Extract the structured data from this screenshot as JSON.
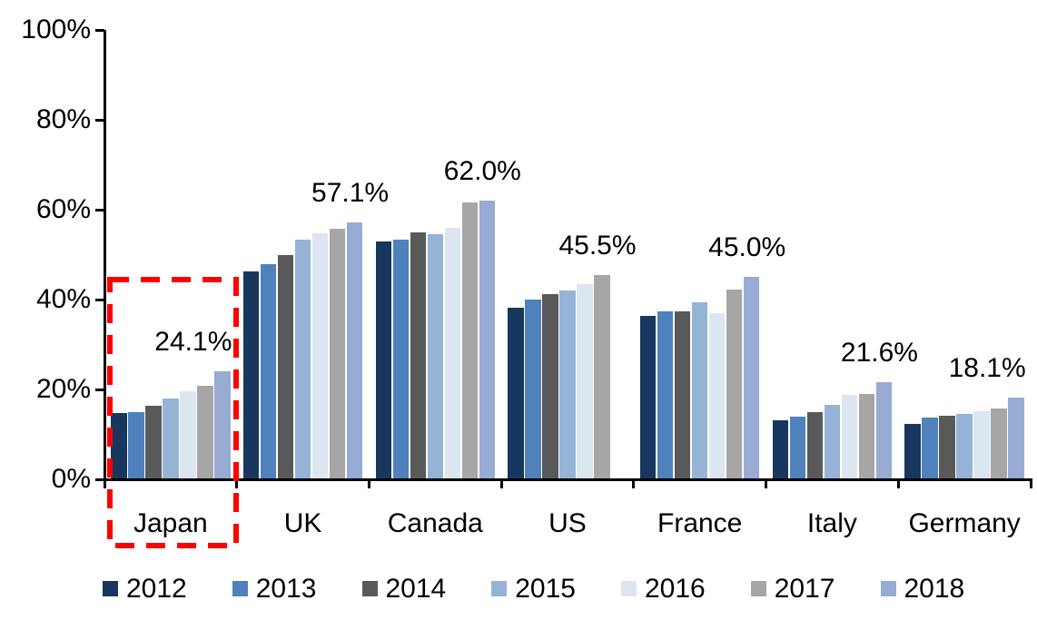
{
  "chart_data": {
    "type": "bar",
    "title": "",
    "xlabel": "",
    "ylabel": "",
    "categories": [
      "Japan",
      "UK",
      "Canada",
      "US",
      "France",
      "Italy",
      "Germany"
    ],
    "series": [
      {
        "name": "2012",
        "color": "#17375E",
        "values": [
          14.7,
          46.3,
          52.9,
          38.1,
          36.3,
          13.1,
          12.4
        ]
      },
      {
        "name": "2013",
        "color": "#4F81BD",
        "values": [
          14.9,
          47.9,
          53.3,
          40.0,
          37.3,
          13.9,
          13.7
        ]
      },
      {
        "name": "2014",
        "color": "#595959",
        "values": [
          16.3,
          50.0,
          54.9,
          41.2,
          37.3,
          15.0,
          14.1
        ]
      },
      {
        "name": "2015",
        "color": "#95B3D7",
        "values": [
          17.9,
          53.3,
          54.6,
          42.0,
          39.3,
          16.6,
          14.5
        ]
      },
      {
        "name": "2016",
        "color": "#DCE6F1",
        "values": [
          19.6,
          54.8,
          56.0,
          43.5,
          37.0,
          18.7,
          15.1
        ]
      },
      {
        "name": "2017",
        "color": "#A6A6A6",
        "values": [
          20.9,
          55.7,
          61.6,
          45.5,
          42.2,
          18.9,
          15.7
        ]
      },
      {
        "name": "2018",
        "color": "#97ABD4",
        "values": [
          24.1,
          57.1,
          62.0,
          null,
          45.0,
          21.6,
          18.1
        ]
      }
    ],
    "data_labels": [
      "24.1%",
      "57.1%",
      "62.0%",
      "45.5%",
      "45.0%",
      "21.6%",
      "18.1%"
    ],
    "y_ticks": [
      {
        "value": 0,
        "label": "0%"
      },
      {
        "value": 20,
        "label": "20%"
      },
      {
        "value": 40,
        "label": "40%"
      },
      {
        "value": 60,
        "label": "60%"
      },
      {
        "value": 80,
        "label": "80%"
      },
      {
        "value": 100,
        "label": "100%"
      }
    ],
    "ylim": [
      0,
      100
    ],
    "grid": false,
    "legend_position": "bottom",
    "annotations": {
      "highlight_box_category": "Japan",
      "highlight_style": "red-dashed-rectangle"
    }
  },
  "colors": {
    "axis": "#000000",
    "highlight": "#FF0000",
    "background": "#FFFFFF"
  }
}
